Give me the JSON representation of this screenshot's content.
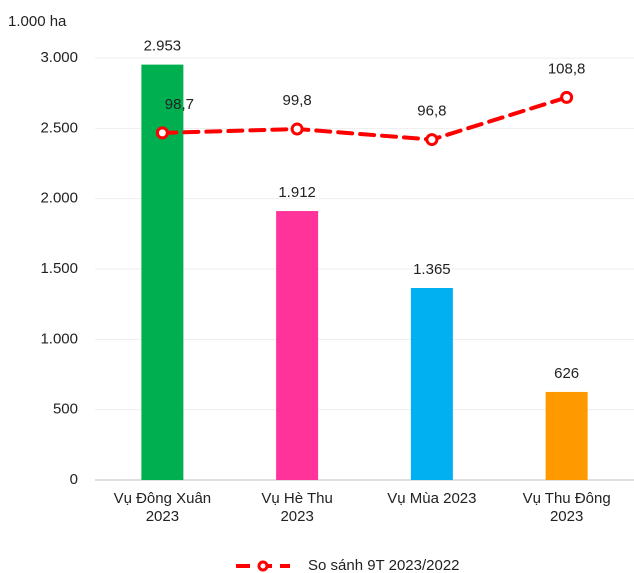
{
  "chart_data": {
    "type": "bar",
    "unit_label": "1.000 ha",
    "categories": [
      "Vụ Đông Xuân\n2023",
      "Vụ Hè Thu\n2023",
      "Vụ Mùa 2023",
      "Vụ Thu Đông\n2023"
    ],
    "values": [
      2953,
      1912,
      1365,
      626
    ],
    "value_labels": [
      "2.953",
      "1.912",
      "1.365",
      "626"
    ],
    "colors": [
      "#00b050",
      "#ff3399",
      "#00b0f0",
      "#ff9900"
    ],
    "ylim": [
      0,
      3000
    ],
    "yticks": [
      0,
      500,
      {
        "value": 1000,
        "label": "1.000"
      },
      {
        "value": 1500,
        "label": "1.500"
      },
      {
        "value": 2000,
        "label": "2.000"
      },
      {
        "value": 2500,
        "label": "2.500"
      },
      {
        "value": 3000,
        "label": "3.000"
      }
    ],
    "grid": true,
    "y2lim": [
      0,
      120
    ],
    "line": {
      "name": "So sánh 9T 2023/2022",
      "color": "#ff0000",
      "axis": "y2",
      "values": [
        98.7,
        99.8,
        96.8,
        108.8
      ],
      "value_labels": [
        "98,7",
        "99,8",
        "96,8",
        "108,8"
      ]
    },
    "legend": "bottom"
  }
}
